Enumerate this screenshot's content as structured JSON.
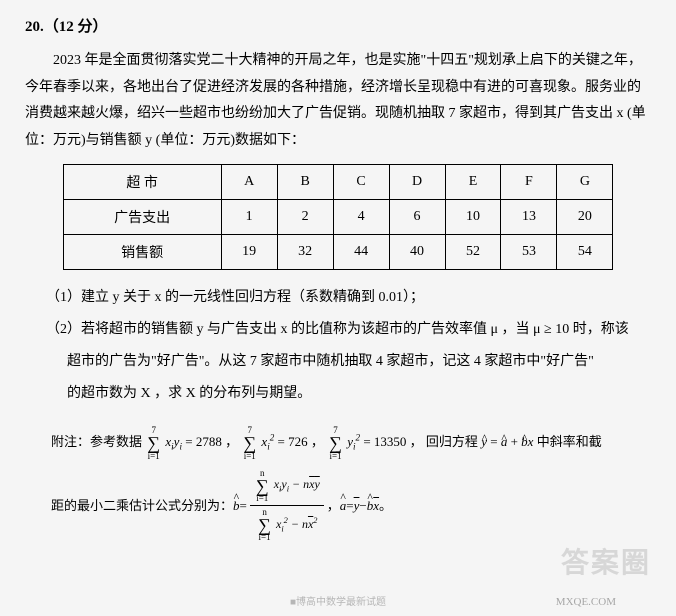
{
  "question": {
    "number": "20.（12 分）",
    "intro_p1": "2023 年是全面贯彻落实党二十大精神的开局之年，也是实施\"十四五\"规划承上启下的关键之年，今年春季以来，各地出台了促进经济发展的各种措施，经济增长呈现稳中有进的可喜现象。服务业的消费越来越火爆，绍兴一些超市也纷纷加大了广告促销。现随机抽取 7 家超市，得到其广告支出 x (单位：万元)与销售额 y (单位：万元)数据如下：",
    "table": {
      "columns": [
        "超 市",
        "A",
        "B",
        "C",
        "D",
        "E",
        "F",
        "G"
      ],
      "rows": [
        [
          "广告支出",
          "1",
          "2",
          "4",
          "6",
          "10",
          "13",
          "20"
        ],
        [
          "销售额",
          "19",
          "32",
          "44",
          "40",
          "52",
          "53",
          "54"
        ]
      ]
    },
    "sub1": "（1）建立 y 关于 x 的一元线性回归方程（系数精确到 0.01）；",
    "sub2_a": "（2）若将超市的销售额 y 与广告支出 x 的比值称为该超市的广告效率值 μ ，当 μ ≥ 10 时，称该",
    "sub2_b": "超市的广告为\"好广告\"。从这 7 家超市中随机抽取 4 家超市，记这 4 家超市中\"好广告\"",
    "sub2_c": "的超市数为 X ，求 X 的分布列与期望。",
    "note_prefix": "附注：参考数据",
    "note_sum1_expr": "= 2788 ，",
    "note_sum2_expr": "= 726 ，",
    "note_sum3_expr": "= 13350 ，",
    "note_regression": "回归方程",
    "note_reg_eq": " 中斜率和截",
    "note2_prefix": "距的最小二乘估计公式分别为：",
    "note2_b_eq": " ，",
    "note2_a_eq": " 。",
    "sigma_top": "7",
    "sigma_bot": "i=1",
    "sigma_top_n": "n",
    "formula": {
      "xy": "xᵢyᵢ",
      "x2": "xᵢ²",
      "y2": "yᵢ²"
    }
  },
  "style": {
    "bg": "#f5f5f5",
    "text": "#000000",
    "border": "#000000",
    "watermark_color": "rgba(180,180,180,0.45)"
  },
  "watermark": "答案圈",
  "wm2": "MXQE.COM",
  "wm3": "■博高中数学最新试题"
}
